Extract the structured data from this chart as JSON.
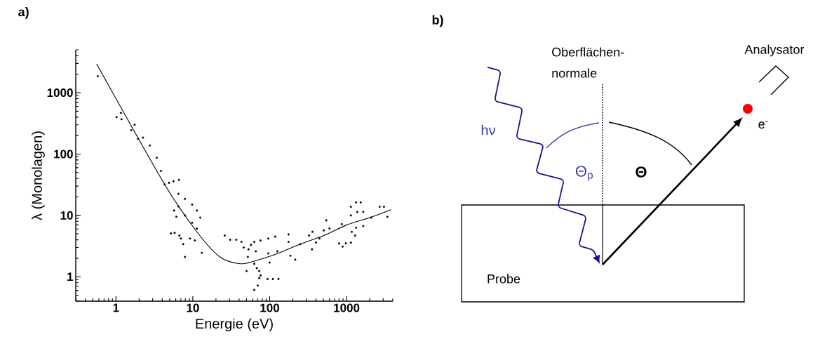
{
  "chart_data": [
    {
      "type": "scatter",
      "title": "a)",
      "xlabel": "Energie (eV)",
      "ylabel": "λ (Monolagen)",
      "log": "xy",
      "xlim": [
        0.3,
        4000
      ],
      "ylim": [
        0.4,
        5000
      ],
      "xticks": [
        1,
        10,
        100,
        1000
      ],
      "yticks": [
        1,
        10,
        100,
        1000
      ],
      "marker": "circle",
      "series": [
        {
          "type": "scatter",
          "color": "#000000",
          "x": [
            0.58,
            1.02,
            1.16,
            1.18,
            1.58,
            1.75,
            1.94,
            2.25,
            2.76,
            3.4,
            3.85,
            4.3,
            4.9,
            5.6,
            6.6,
            5.7,
            6.1,
            5.2,
            5.8,
            6.7,
            7.0,
            7.5,
            7.9,
            9.2,
            10.6,
            13.1,
            6.5,
            7.9,
            9.8,
            11.3,
            12.5,
            6.5,
            7.9,
            9.8,
            11.3,
            26,
            30.6,
            36.8,
            43,
            46,
            50,
            53,
            52,
            57,
            63,
            66,
            63,
            68,
            73,
            76,
            73,
            70,
            63,
            76,
            94,
            110,
            130,
            96,
            96,
            100,
            118,
            126,
            176,
            176,
            186,
            215,
            250,
            325,
            360,
            355,
            400,
            445,
            545,
            505,
            600,
            800,
            890,
            980,
            870,
            1140,
            1140,
            1140,
            1170,
            1290,
            1330,
            1530,
            1380,
            1650,
            1650,
            1330,
            2100,
            2700,
            3070,
            3400
          ],
          "values": [
            1860,
            400,
            470,
            370,
            245,
            300,
            177,
            185,
            138,
            87,
            53,
            32,
            34,
            36,
            38,
            12,
            9.5,
            5.1,
            5.2,
            4.7,
            4.2,
            3.4,
            2.1,
            4.2,
            3.9,
            2.45,
            22.5,
            18.6,
            15,
            12,
            9.2,
            14,
            10,
            7.6,
            6.1,
            4.7,
            4.0,
            4.0,
            3.7,
            3.0,
            1.24,
            2.8,
            2.1,
            3.3,
            3.7,
            2.6,
            1.63,
            1.38,
            1.24,
            1.05,
            0.95,
            0.72,
            0.61,
            3.9,
            0.92,
            0.92,
            0.92,
            4.2,
            2.4,
            1.7,
            4.5,
            2.6,
            4.9,
            3.7,
            2.2,
            1.9,
            3.4,
            4.7,
            5.4,
            2.8,
            3.6,
            4.2,
            8.3,
            5.7,
            6.1,
            3.5,
            3.1,
            3.5,
            7.2,
            3.6,
            13.8,
            10,
            5.4,
            4.7,
            16.3,
            16.3,
            11.4,
            11.4,
            6.7,
            6.3,
            9.2,
            13.8,
            13.8,
            9.5
          ]
        },
        {
          "type": "line",
          "color": "#000000",
          "marker": "none",
          "x": [
            0.56,
            4.3,
            11.3,
            22.5,
            41,
            63,
            128,
            250,
            505,
            1010,
            2000,
            3800
          ],
          "values": [
            2950,
            32,
            5.4,
            2.1,
            1.63,
            1.8,
            2.4,
            3.4,
            4.7,
            7.0,
            9.2,
            12.4
          ]
        }
      ]
    },
    {
      "type": "other",
      "title": "b)",
      "annotations": [
        "Oberflächen-",
        "normale",
        "Analysator",
        "hν",
        "Θ$_{p}$",
        "Θ",
        "e$^{-}$",
        "Probe"
      ]
    }
  ]
}
